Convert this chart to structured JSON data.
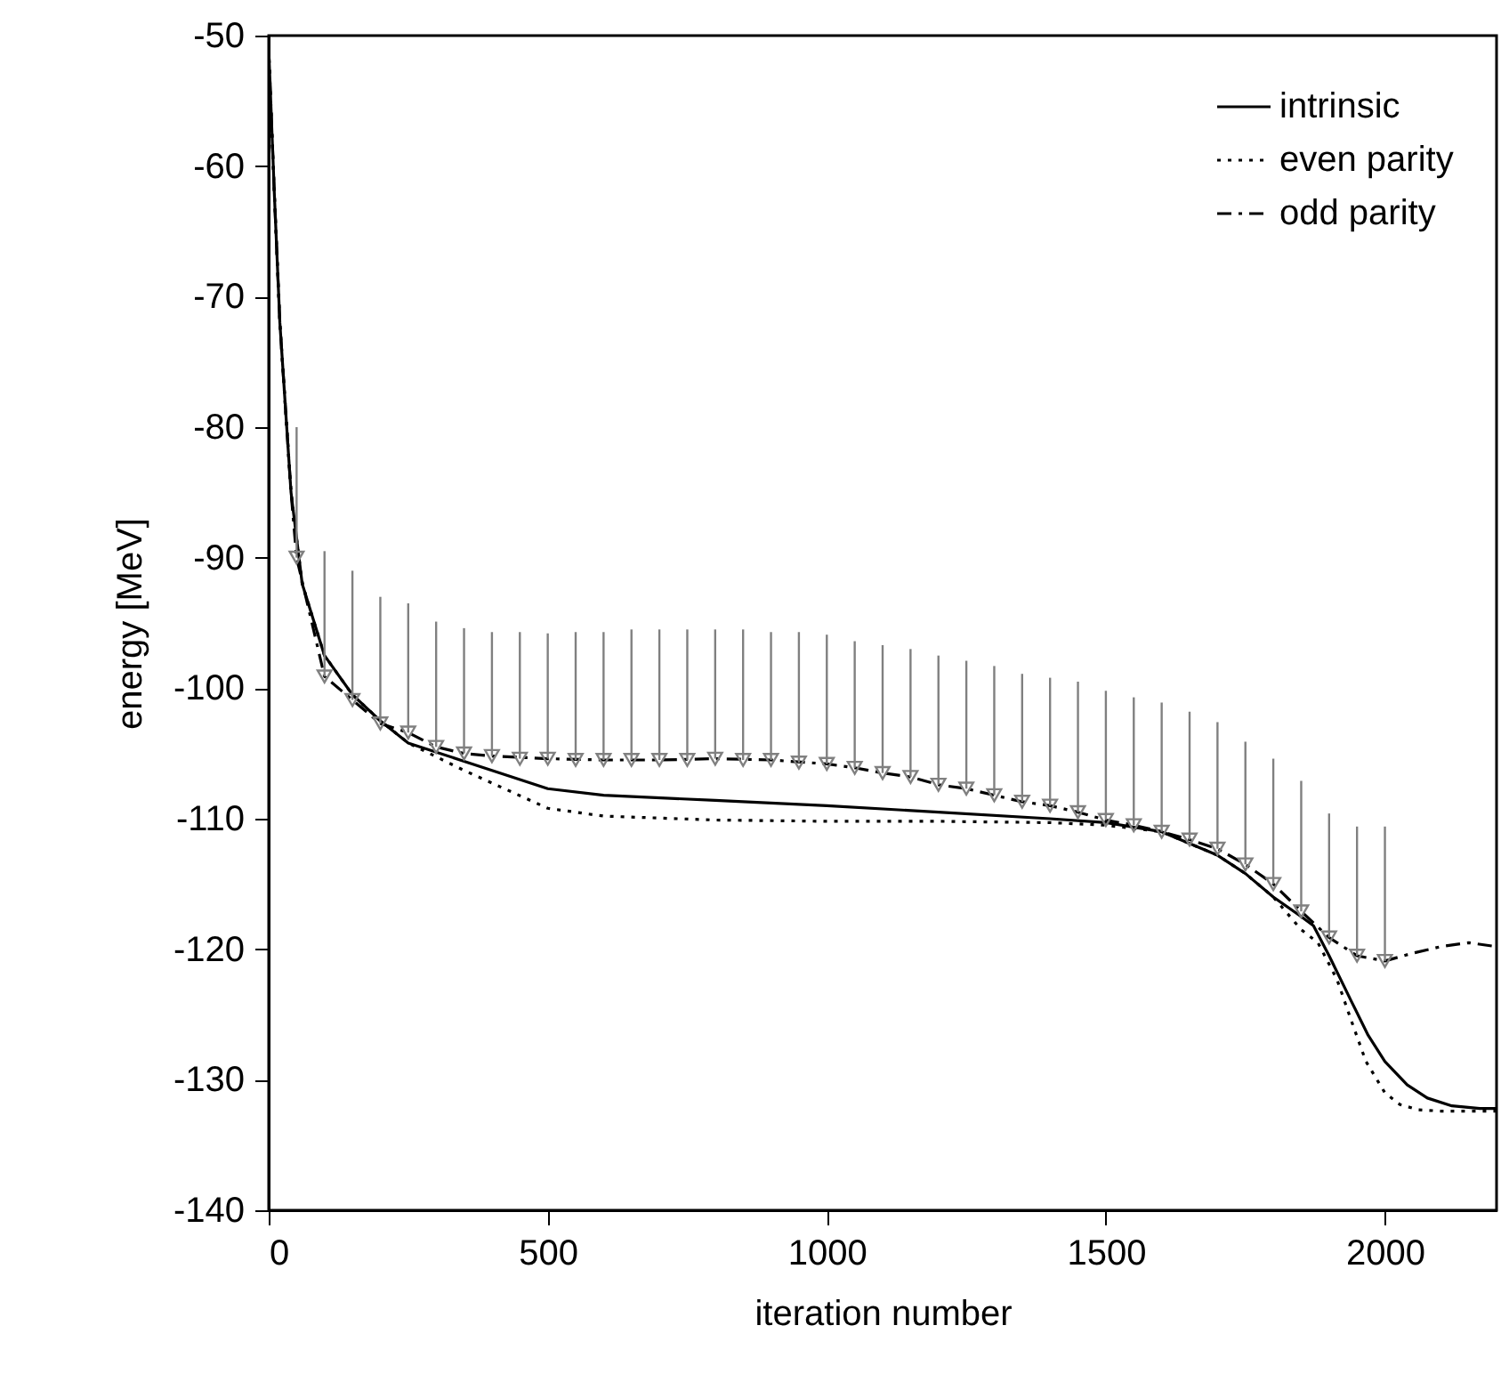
{
  "chart_data": {
    "type": "line",
    "xlabel": "iteration number",
    "ylabel": "energy [MeV]",
    "xlim": [
      0,
      2200
    ],
    "ylim": [
      -140,
      -50
    ],
    "xticks": [
      0,
      500,
      1000,
      1500,
      2000
    ],
    "yticks": [
      -140,
      -130,
      -120,
      -110,
      -100,
      -90,
      -80,
      -70,
      -60,
      -50
    ],
    "grid": false,
    "legend": "top right",
    "series": [
      {
        "name": "intrinsic",
        "color": "#000000",
        "line_style": "solid",
        "x": [
          0,
          10,
          20,
          40,
          60,
          100,
          150,
          200,
          250,
          350,
          500,
          600,
          800,
          1000,
          1200,
          1400,
          1500,
          1600,
          1700,
          1750,
          1800,
          1850,
          1872,
          1900,
          1940,
          1970,
          2000,
          2040,
          2076,
          2120,
          2170,
          2200
        ],
        "values": [
          -51,
          -62,
          -72,
          -85,
          -92,
          -97.5,
          -100.5,
          -102.5,
          -104.2,
          -105.6,
          -107.7,
          -108.2,
          -108.6,
          -109,
          -109.5,
          -110,
          -110.3,
          -111,
          -112.8,
          -114.2,
          -116,
          -117.5,
          -118.2,
          -120.5,
          -124,
          -126.6,
          -128.6,
          -130.4,
          -131.4,
          -132,
          -132.2,
          -132.2
        ]
      },
      {
        "name": "even parity",
        "color": "#000000",
        "line_style": "dotted",
        "x": [
          0,
          10,
          20,
          40,
          60,
          100,
          150,
          200,
          250,
          350,
          500,
          600,
          800,
          1000,
          1200,
          1400,
          1500,
          1600,
          1700,
          1750,
          1800,
          1850,
          1880,
          1914,
          1940,
          1966,
          2000,
          2027,
          2060,
          2100,
          2150,
          2200
        ],
        "values": [
          -51,
          -62,
          -72,
          -85,
          -92,
          -97.5,
          -100.5,
          -102.5,
          -104.2,
          -106.3,
          -109.2,
          -109.8,
          -110.1,
          -110.2,
          -110.2,
          -110.3,
          -110.5,
          -111,
          -112.8,
          -114.2,
          -116,
          -118.5,
          -119.5,
          -122.3,
          -125.5,
          -128.6,
          -131,
          -131.9,
          -132.3,
          -132.4,
          -132.4,
          -132.4
        ]
      },
      {
        "name": "odd parity",
        "color": "#000000",
        "line_style": "dashdot",
        "x": [
          0,
          10,
          20,
          40,
          50,
          100,
          150,
          200,
          250,
          300,
          350,
          400,
          500,
          600,
          700,
          800,
          900,
          1000,
          1050,
          1100,
          1150,
          1200,
          1250,
          1300,
          1350,
          1400,
          1450,
          1500,
          1550,
          1600,
          1650,
          1700,
          1750,
          1800,
          1850,
          1900,
          1950,
          2000,
          2050,
          2100,
          2150,
          2200
        ],
        "values": [
          -51,
          -62,
          -72,
          -85,
          -90,
          -99.1,
          -100.9,
          -102.7,
          -103.4,
          -104.5,
          -105,
          -105.2,
          -105.4,
          -105.5,
          -105.5,
          -105.4,
          -105.5,
          -105.8,
          -106.1,
          -106.5,
          -106.8,
          -107.4,
          -107.7,
          -108.2,
          -108.7,
          -109,
          -109.5,
          -110.1,
          -110.5,
          -111,
          -111.6,
          -112.3,
          -113.5,
          -115,
          -117.1,
          -119.1,
          -120.5,
          -120.9,
          -120.3,
          -119.8,
          -119.5,
          -119.8
        ]
      },
      {
        "type": "scatter",
        "color": "#808080",
        "marker": "triangle",
        "x": [
          50,
          100,
          150,
          200,
          250,
          300,
          350,
          400,
          450,
          500,
          550,
          600,
          650,
          700,
          750,
          800,
          850,
          900,
          950,
          1000,
          1050,
          1100,
          1150,
          1200,
          1250,
          1300,
          1350,
          1400,
          1450,
          1500,
          1550,
          1600,
          1650,
          1700,
          1750,
          1800,
          1850,
          1900,
          1950,
          2000
        ],
        "values": [
          -90,
          -99.1,
          -100.9,
          -102.7,
          -103.4,
          -104.5,
          -105,
          -105.2,
          -105.4,
          -105.4,
          -105.5,
          -105.5,
          -105.5,
          -105.5,
          -105.5,
          -105.4,
          -105.5,
          -105.5,
          -105.7,
          -105.8,
          -106.1,
          -106.5,
          -106.8,
          -107.4,
          -107.7,
          -108.2,
          -108.7,
          -109,
          -109.5,
          -110.1,
          -110.5,
          -111,
          -111.6,
          -112.3,
          -113.5,
          -115,
          -117.1,
          -119.1,
          -120.5,
          -120.9
        ],
        "errors": [
          [
            -90,
            -80
          ],
          [
            -99.1,
            -89.5
          ],
          [
            -100.9,
            -91
          ],
          [
            -102.7,
            -93
          ],
          [
            -103.4,
            -93.5
          ],
          [
            -104.5,
            -94.9
          ],
          [
            -105,
            -95.4
          ],
          [
            -105.2,
            -95.7
          ],
          [
            -105.4,
            -95.7
          ],
          [
            -105.4,
            -95.8
          ],
          [
            -105.5,
            -95.7
          ],
          [
            -105.5,
            -95.7
          ],
          [
            -105.5,
            -95.5
          ],
          [
            -105.5,
            -95.5
          ],
          [
            -105.5,
            -95.5
          ],
          [
            -105.4,
            -95.5
          ],
          [
            -105.5,
            -95.5
          ],
          [
            -105.5,
            -95.7
          ],
          [
            -105.7,
            -95.7
          ],
          [
            -105.8,
            -95.9
          ],
          [
            -106.1,
            -96.4
          ],
          [
            -106.5,
            -96.7
          ],
          [
            -106.8,
            -97
          ],
          [
            -107.4,
            -97.5
          ],
          [
            -107.7,
            -97.9
          ],
          [
            -108.2,
            -98.3
          ],
          [
            -108.7,
            -98.9
          ],
          [
            -109,
            -99.2
          ],
          [
            -109.5,
            -99.5
          ],
          [
            -110.1,
            -100.2
          ],
          [
            -110.5,
            -100.7
          ],
          [
            -111,
            -101.1
          ],
          [
            -111.6,
            -101.8
          ],
          [
            -112.3,
            -102.6
          ],
          [
            -113.5,
            -104.1
          ],
          [
            -115,
            -105.4
          ],
          [
            -117.1,
            -107.1
          ],
          [
            -119.1,
            -109.6
          ],
          [
            -120.5,
            -110.6
          ],
          [
            -120.9,
            -110.6
          ]
        ]
      }
    ]
  }
}
